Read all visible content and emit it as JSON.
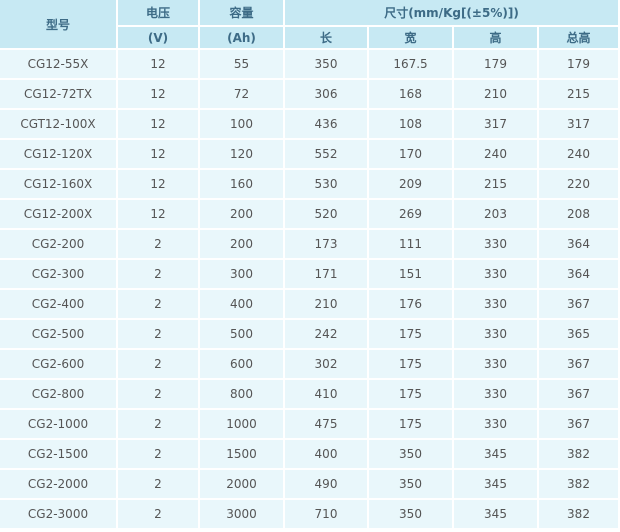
{
  "header": {
    "model": "型号",
    "voltage": "电压",
    "voltage_unit": "(V)",
    "capacity": "容量",
    "capacity_unit": "(Ah)",
    "dimensions": "尺寸(mm/Kg[(±5%)])",
    "length": "长",
    "width": "宽",
    "height": "高",
    "total_height": "总高"
  },
  "rows": [
    {
      "model": "CG12-55X",
      "voltage": "12",
      "capacity": "55",
      "length": "350",
      "width": "167.5",
      "height": "179",
      "total_height": "179"
    },
    {
      "model": "CG12-72TX",
      "voltage": "12",
      "capacity": "72",
      "length": "306",
      "width": "168",
      "height": "210",
      "total_height": "215"
    },
    {
      "model": "CGT12-100X",
      "voltage": "12",
      "capacity": "100",
      "length": "436",
      "width": "108",
      "height": "317",
      "total_height": "317"
    },
    {
      "model": "CG12-120X",
      "voltage": "12",
      "capacity": "120",
      "length": "552",
      "width": "170",
      "height": "240",
      "total_height": "240"
    },
    {
      "model": "CG12-160X",
      "voltage": "12",
      "capacity": "160",
      "length": "530",
      "width": "209",
      "height": "215",
      "total_height": "220"
    },
    {
      "model": "CG12-200X",
      "voltage": "12",
      "capacity": "200",
      "length": "520",
      "width": "269",
      "height": "203",
      "total_height": "208"
    },
    {
      "model": "CG2-200",
      "voltage": "2",
      "capacity": "200",
      "length": "173",
      "width": "111",
      "height": "330",
      "total_height": "364"
    },
    {
      "model": "CG2-300",
      "voltage": "2",
      "capacity": "300",
      "length": "171",
      "width": "151",
      "height": "330",
      "total_height": "364"
    },
    {
      "model": "CG2-400",
      "voltage": "2",
      "capacity": "400",
      "length": "210",
      "width": "176",
      "height": "330",
      "total_height": "367"
    },
    {
      "model": "CG2-500",
      "voltage": "2",
      "capacity": "500",
      "length": "242",
      "width": "175",
      "height": "330",
      "total_height": "365"
    },
    {
      "model": "CG2-600",
      "voltage": "2",
      "capacity": "600",
      "length": "302",
      "width": "175",
      "height": "330",
      "total_height": "367"
    },
    {
      "model": "CG2-800",
      "voltage": "2",
      "capacity": "800",
      "length": "410",
      "width": "175",
      "height": "330",
      "total_height": "367"
    },
    {
      "model": "CG2-1000",
      "voltage": "2",
      "capacity": "1000",
      "length": "475",
      "width": "175",
      "height": "330",
      "total_height": "367"
    },
    {
      "model": "CG2-1500",
      "voltage": "2",
      "capacity": "1500",
      "length": "400",
      "width": "350",
      "height": "345",
      "total_height": "382"
    },
    {
      "model": "CG2-2000",
      "voltage": "2",
      "capacity": "2000",
      "length": "490",
      "width": "350",
      "height": "345",
      "total_height": "382"
    },
    {
      "model": "CG2-3000",
      "voltage": "2",
      "capacity": "3000",
      "length": "710",
      "width": "350",
      "height": "345",
      "total_height": "382"
    }
  ],
  "colors": {
    "header_bg": "#c7e9f3",
    "header_text": "#3d6b86",
    "cell_bg": "#e9f7fb",
    "cell_text": "#555555"
  }
}
